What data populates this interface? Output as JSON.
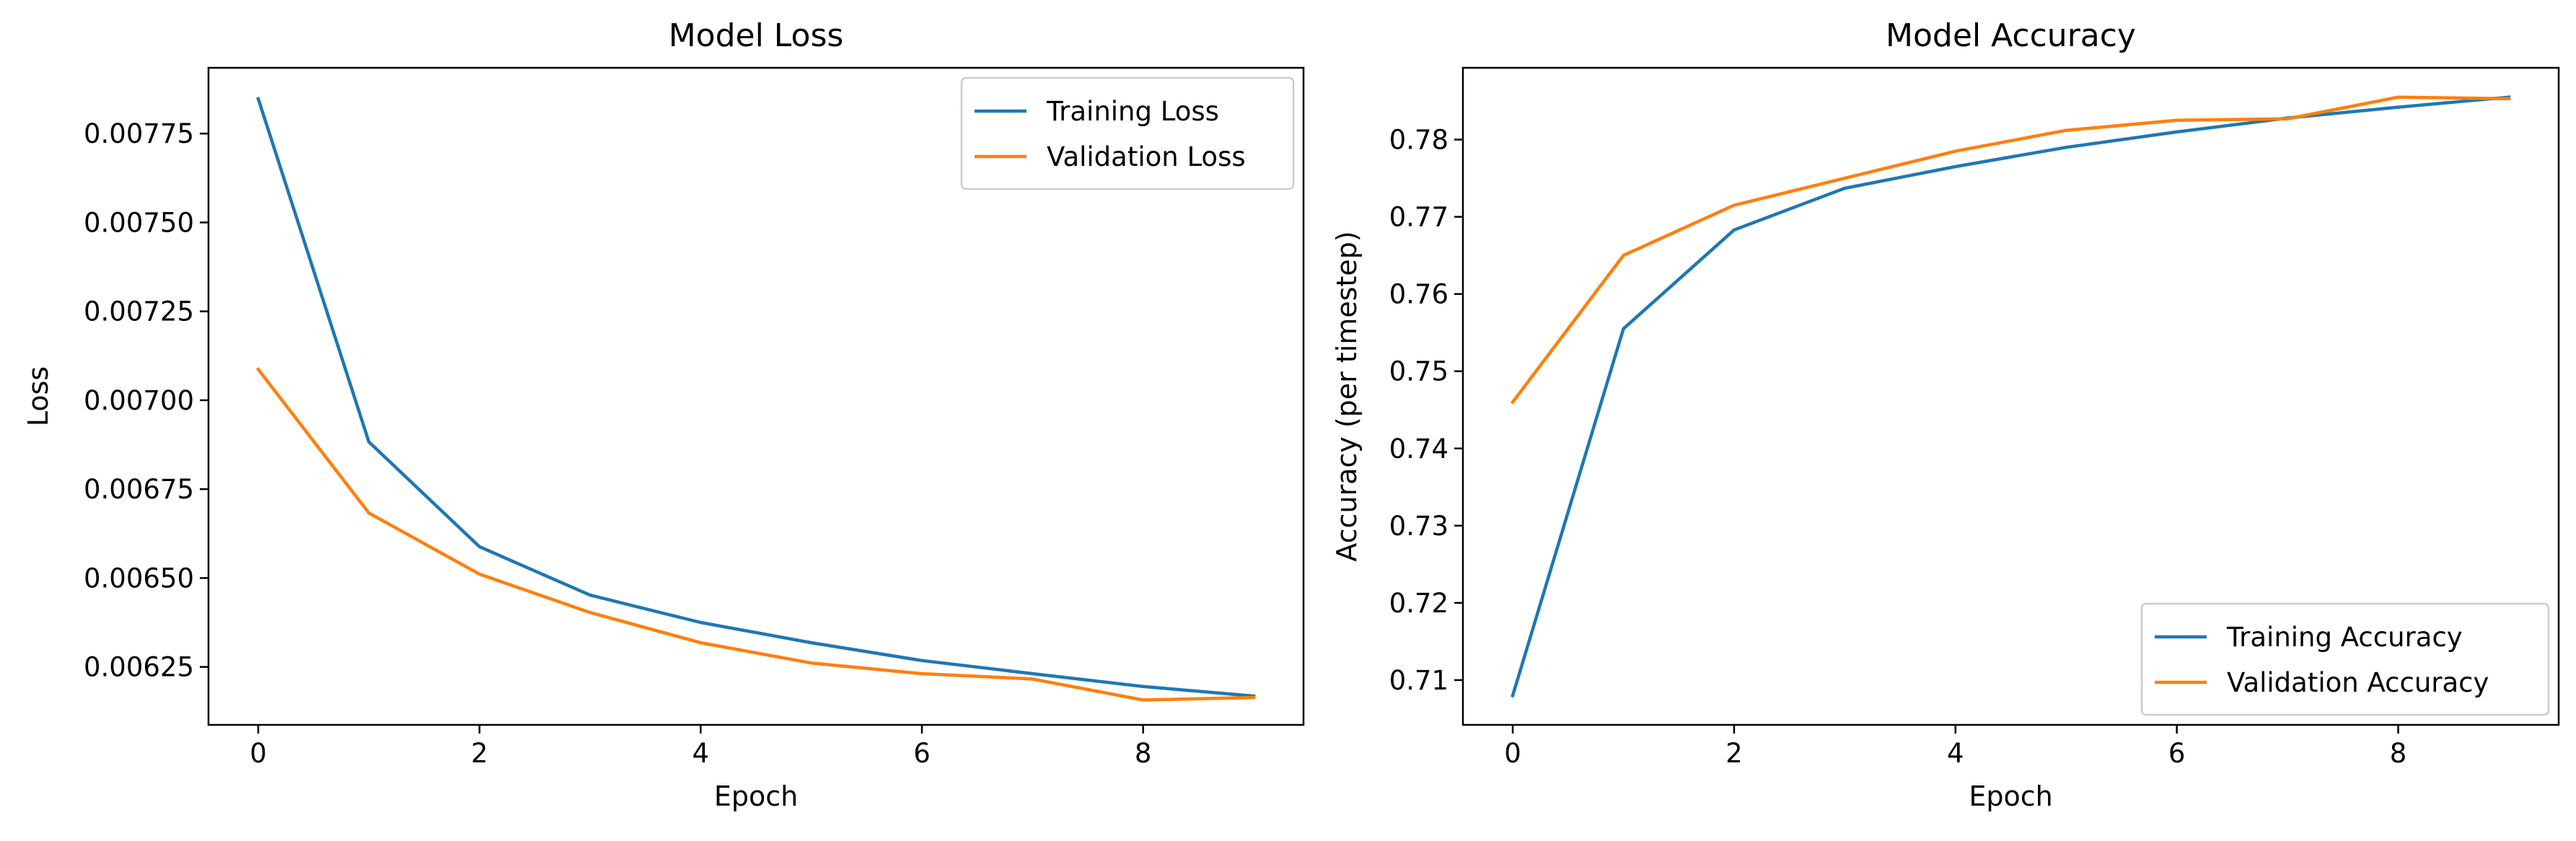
{
  "chart_data": [
    {
      "type": "line",
      "title": "Model Loss",
      "xlabel": "Epoch",
      "ylabel": "Loss",
      "x": [
        0,
        1,
        2,
        3,
        4,
        5,
        6,
        7,
        8,
        9
      ],
      "xlim": [
        -0.45,
        9.45
      ],
      "ylim": [
        0.006087,
        0.007935
      ],
      "xticks": [
        0,
        2,
        4,
        6,
        8
      ],
      "xtick_labels": [
        "0",
        "2",
        "4",
        "6",
        "8"
      ],
      "yticks": [
        0.00625,
        0.0065,
        0.00675,
        0.007,
        0.00725,
        0.0075,
        0.00775
      ],
      "ytick_labels": [
        "0.00625",
        "0.00650",
        "0.00675",
        "0.00700",
        "0.00725",
        "0.00750",
        "0.00775"
      ],
      "legend_loc": "upper right",
      "grid": false,
      "series": [
        {
          "name": "Training Loss",
          "color": "#1f77b4",
          "values": [
            0.007848,
            0.006883,
            0.006588,
            0.006452,
            0.006375,
            0.006318,
            0.006268,
            0.006231,
            0.006195,
            0.006168
          ]
        },
        {
          "name": "Validation Loss",
          "color": "#ff7f0e",
          "values": [
            0.007087,
            0.006683,
            0.006511,
            0.006403,
            0.006318,
            0.006261,
            0.006231,
            0.006216,
            0.006157,
            0.006164
          ]
        }
      ]
    },
    {
      "type": "line",
      "title": "Model Accuracy",
      "xlabel": "Epoch",
      "ylabel": "Accuracy (per timestep)",
      "x": [
        0,
        1,
        2,
        3,
        4,
        5,
        6,
        7,
        8,
        9
      ],
      "xlim": [
        -0.45,
        9.45
      ],
      "ylim": [
        0.7042,
        0.7893
      ],
      "xticks": [
        0,
        2,
        4,
        6,
        8
      ],
      "xtick_labels": [
        "0",
        "2",
        "4",
        "6",
        "8"
      ],
      "yticks": [
        0.71,
        0.72,
        0.73,
        0.74,
        0.75,
        0.76,
        0.77,
        0.78
      ],
      "ytick_labels": [
        "0.71",
        "0.72",
        "0.73",
        "0.74",
        "0.75",
        "0.76",
        "0.77",
        "0.78"
      ],
      "legend_loc": "lower right",
      "grid": false,
      "series": [
        {
          "name": "Training Accuracy",
          "color": "#1f77b4",
          "values": [
            0.708,
            0.7555,
            0.7683,
            0.7737,
            0.7765,
            0.779,
            0.781,
            0.7828,
            0.7842,
            0.7855
          ]
        },
        {
          "name": "Validation Accuracy",
          "color": "#ff7f0e",
          "values": [
            0.746,
            0.765,
            0.7715,
            0.775,
            0.7785,
            0.7812,
            0.7825,
            0.7827,
            0.7855,
            0.7853
          ]
        }
      ]
    }
  ]
}
